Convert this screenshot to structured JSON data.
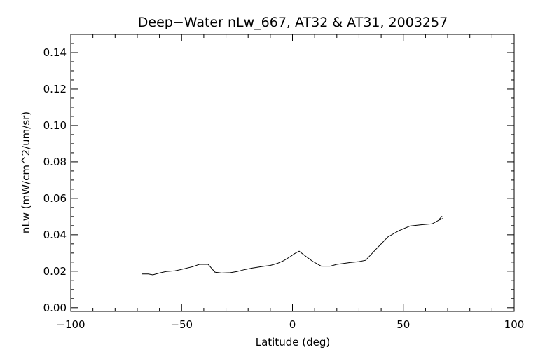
{
  "chart_data": {
    "type": "line",
    "title": "Deep−Water nLw_667, AT32 & AT31, 2003257",
    "xlabel": "Latitude (deg)",
    "ylabel": "nLw (mW/cm^2/um/sr)",
    "xlim": [
      -100,
      100
    ],
    "ylim": [
      -0.002,
      0.15
    ],
    "x_ticks": [
      -100,
      -50,
      0,
      50,
      100
    ],
    "x_tick_labels": [
      "−100",
      "−50",
      "0",
      "50",
      "100"
    ],
    "y_ticks": [
      0.0,
      0.02,
      0.04,
      0.06,
      0.08,
      0.1,
      0.12,
      0.14
    ],
    "y_tick_labels": [
      "0.00",
      "0.02",
      "0.04",
      "0.06",
      "0.08",
      "0.10",
      "0.12",
      "0.14"
    ],
    "grid": false,
    "series": [
      {
        "x": [
          -68,
          -65,
          -63,
          -60,
          -57,
          -53,
          -50,
          -45,
          -42,
          -38,
          -35,
          -32,
          -28,
          -25,
          -22,
          -18,
          -14,
          -10,
          -7,
          -4,
          -1,
          1,
          3,
          6,
          9,
          13,
          17,
          20,
          23,
          26,
          30,
          33,
          38,
          43,
          48,
          53,
          58,
          63,
          66,
          68
        ],
        "y": [
          0.0185,
          0.0185,
          0.018,
          0.019,
          0.0198,
          0.0202,
          0.021,
          0.0225,
          0.0238,
          0.0238,
          0.0195,
          0.019,
          0.0192,
          0.0198,
          0.0208,
          0.0218,
          0.0225,
          0.0232,
          0.0242,
          0.0258,
          0.028,
          0.0297,
          0.031,
          0.0282,
          0.0255,
          0.0228,
          0.0228,
          0.0238,
          0.0243,
          0.0248,
          0.0253,
          0.026,
          0.0325,
          0.0388,
          0.0422,
          0.0448,
          0.0455,
          0.046,
          0.048,
          0.049
        ],
        "color": "#000000"
      },
      {
        "x": [
          66,
          67.5
        ],
        "y": [
          0.0482,
          0.0502
        ],
        "color": "#000000"
      }
    ]
  }
}
